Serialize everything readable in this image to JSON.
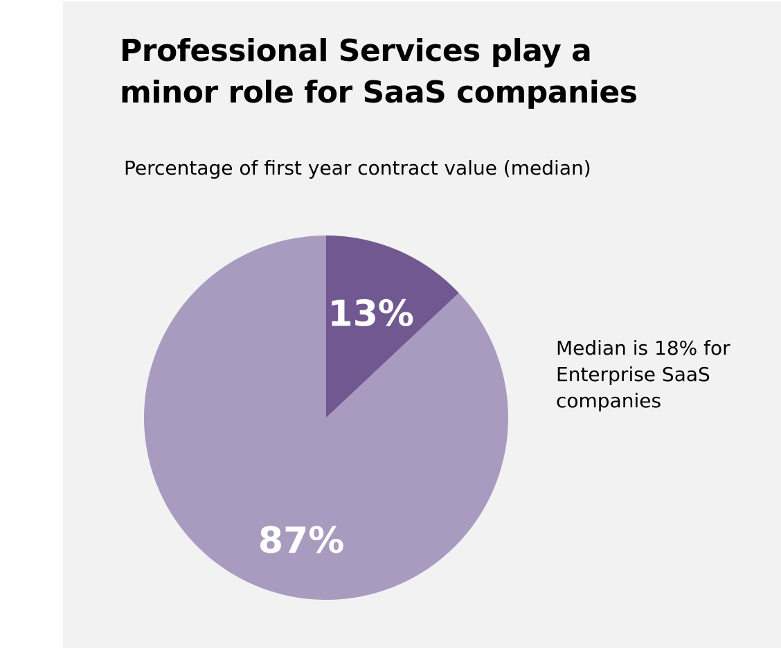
{
  "chart_data": {
    "type": "pie",
    "title": "Professional Services play a minor role for SaaS companies",
    "subtitle": "Percentage of first year contract value (median)",
    "categories": [
      "",
      ""
    ],
    "values": [
      13,
      87
    ],
    "value_labels": [
      "13%",
      "87%"
    ],
    "colors": [
      "#715890",
      "#a99bc0"
    ],
    "start_angle": "12 o'clock, clockwise",
    "legend": "none",
    "annotations": [
      "Median is 18% for Enterprise SaaS companies"
    ]
  }
}
